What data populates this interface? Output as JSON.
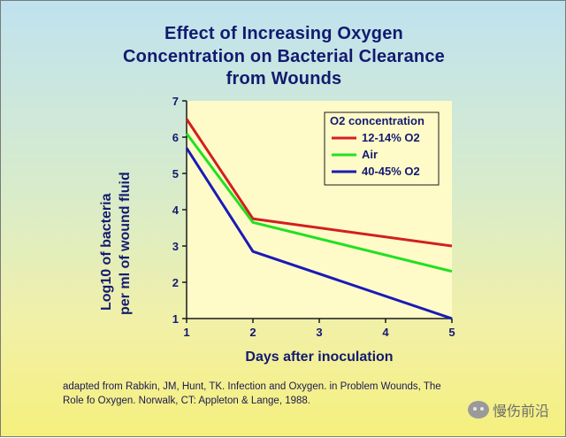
{
  "chart_data": {
    "type": "line",
    "title_lines": [
      "Effect of Increasing Oxygen",
      "Concentration on Bacterial Clearance",
      "from Wounds"
    ],
    "xlabel": "Days after inoculation",
    "ylabel_lines": [
      "Log10 of bacteria",
      "per ml of wound fluid"
    ],
    "x": [
      1,
      2,
      5
    ],
    "xlim": [
      1,
      5
    ],
    "ylim": [
      1,
      7
    ],
    "xticks": [
      "1",
      "2",
      "3",
      "4",
      "5"
    ],
    "yticks": [
      "1",
      "2",
      "3",
      "4",
      "5",
      "6",
      "7"
    ],
    "legend_title": "O2 concentration",
    "legend_position": "top-right",
    "grid": false,
    "series": [
      {
        "name": "12-14% O2",
        "color": "#d21f1f",
        "values": [
          6.5,
          3.75,
          3.0
        ]
      },
      {
        "name": "Air",
        "color": "#22e022",
        "values": [
          6.1,
          3.65,
          2.3
        ]
      },
      {
        "name": "40-45% O2",
        "color": "#1a1ab8",
        "values": [
          5.7,
          2.85,
          1.0
        ]
      }
    ],
    "plot_background": "#fffbc8"
  },
  "citation": {
    "line1": "adapted from Rabkin, JM, Hunt, TK.  Infection and Oxygen.    in Problem Wounds, The",
    "line2": "Role fo Oxygen. Norwalk, CT: Appleton & Lange, 1988."
  },
  "watermark": {
    "text": "慢伤前沿",
    "icon": "wechat-icon"
  }
}
